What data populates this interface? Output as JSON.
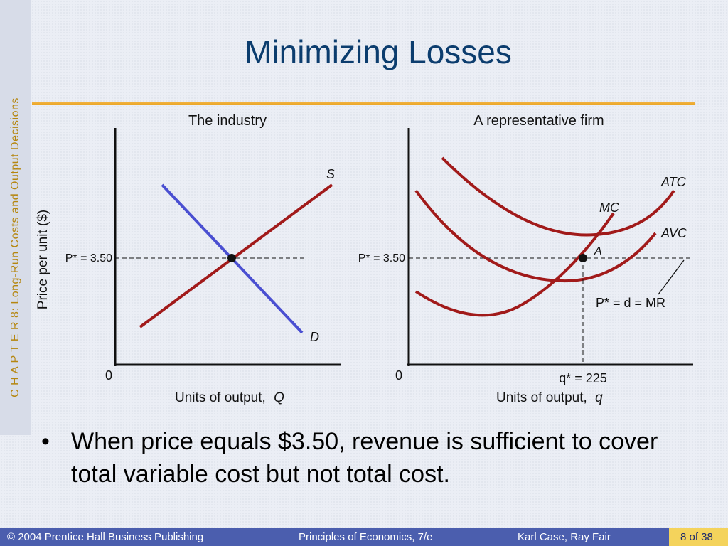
{
  "slide": {
    "title": "Minimizing Losses",
    "side_label": "C H A P T E R  8:  Long-Run Costs and Output Decisions",
    "bullet": "When price equals $3.50, revenue is sufficient to cover total variable cost but not total cost."
  },
  "diagram": {
    "left_panel": {
      "title": "The industry",
      "y_axis_label": "Price per unit ($)",
      "x_axis_label": "Units of output,",
      "x_axis_var": "Q",
      "origin": "0",
      "price_label": "P* = 3.50",
      "supply_label": "S",
      "demand_label": "D"
    },
    "right_panel": {
      "title": "A representative firm",
      "x_axis_label": "Units of output,",
      "x_axis_var": "q",
      "origin": "0",
      "price_label": "P* = 3.50",
      "atc_label": "ATC",
      "avc_label": "AVC",
      "mc_label": "MC",
      "point_label": "A",
      "mr_label": "P* = d = MR",
      "q_label": "q* = 225"
    },
    "colors": {
      "cost_curves": "#a11a1a",
      "demand": "#4a4fd1",
      "axes": "#111111"
    }
  },
  "footer": {
    "copyright": "© 2004 Prentice Hall Business Publishing",
    "book": "Principles of Economics, 7/e",
    "authors": "Karl Case, Ray Fair",
    "page": "8 of 38"
  }
}
